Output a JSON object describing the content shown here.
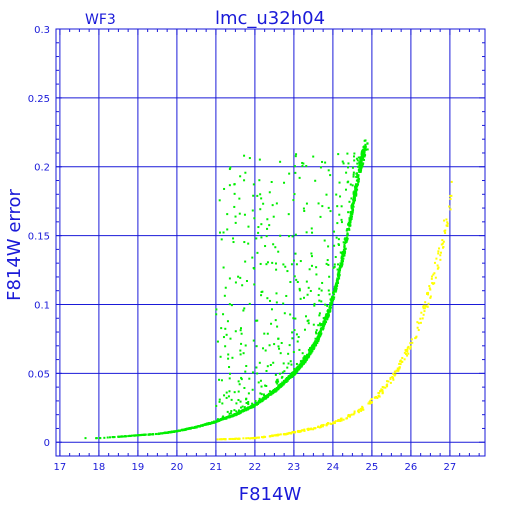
{
  "chart_data": {
    "type": "scatter",
    "title": "lmc_u32h04",
    "corner_label": "WF3",
    "xlabel": "F814W",
    "ylabel": "F814W error",
    "xlim": [
      16.9,
      27.9
    ],
    "ylim": [
      -0.01,
      0.3
    ],
    "x_ticks": [
      17,
      18,
      19,
      20,
      21,
      22,
      23,
      24,
      25,
      26,
      27
    ],
    "y_ticks": [
      0,
      0.05,
      0.1,
      0.15,
      0.2,
      0.25,
      0.3
    ],
    "y_tick_labels": [
      "0",
      "0.05",
      "0.1",
      "0.15",
      "0.2",
      "0.25",
      "0.3"
    ],
    "grid": true,
    "series": [
      {
        "color": "#00ee00",
        "ridge": [
          [
            17.5,
            0.003
          ],
          [
            18.0,
            0.003
          ],
          [
            18.5,
            0.004
          ],
          [
            19.0,
            0.005
          ],
          [
            19.5,
            0.006
          ],
          [
            20.0,
            0.008
          ],
          [
            20.5,
            0.011
          ],
          [
            21.0,
            0.015
          ],
          [
            21.5,
            0.02
          ],
          [
            22.0,
            0.027
          ],
          [
            22.5,
            0.037
          ],
          [
            23.0,
            0.05
          ],
          [
            23.3,
            0.06
          ],
          [
            23.6,
            0.074
          ],
          [
            23.9,
            0.095
          ],
          [
            24.1,
            0.115
          ],
          [
            24.3,
            0.14
          ],
          [
            24.5,
            0.17
          ],
          [
            24.7,
            0.2
          ],
          [
            24.85,
            0.217
          ]
        ]
      },
      {
        "color": "#ffff00",
        "ridge": [
          [
            21.0,
            0.002
          ],
          [
            22.0,
            0.003
          ],
          [
            22.8,
            0.006
          ],
          [
            23.5,
            0.01
          ],
          [
            24.2,
            0.016
          ],
          [
            24.8,
            0.025
          ],
          [
            25.2,
            0.035
          ],
          [
            25.6,
            0.05
          ],
          [
            25.9,
            0.065
          ],
          [
            26.2,
            0.085
          ],
          [
            26.5,
            0.11
          ],
          [
            26.8,
            0.145
          ],
          [
            27.05,
            0.18
          ]
        ]
      }
    ]
  }
}
